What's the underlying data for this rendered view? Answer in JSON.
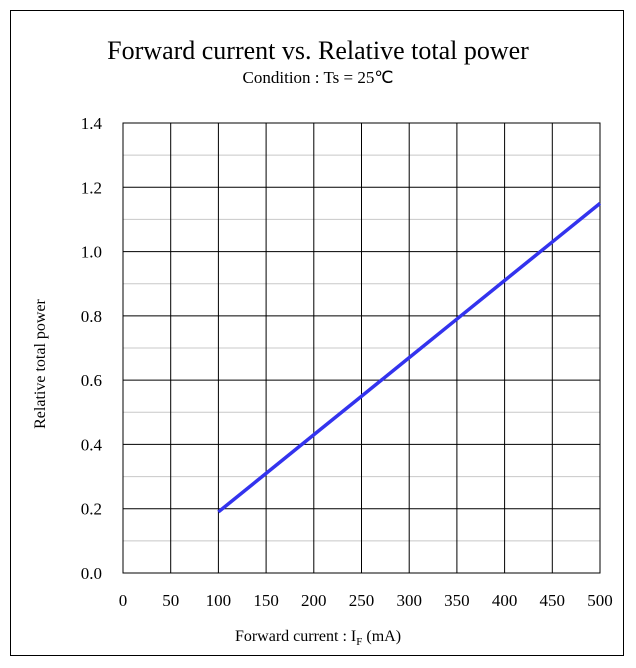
{
  "chart_data": {
    "type": "line",
    "title": "Forward current vs. Relative total power",
    "subtitle": "Condition : Ts = 25℃",
    "xlabel_main": "Forward current : I",
    "xlabel_sub": "F",
    "xlabel_unit": " (mA)",
    "ylabel": "Relative total power",
    "xlim": [
      0,
      500
    ],
    "ylim": [
      0.0,
      1.4
    ],
    "x_ticks": [
      0,
      50,
      100,
      150,
      200,
      250,
      300,
      350,
      400,
      450,
      500
    ],
    "x_tick_labels": [
      "0",
      "50",
      "100",
      "150",
      "200",
      "250",
      "300",
      "350",
      "400",
      "450",
      "500"
    ],
    "y_ticks": [
      0.0,
      0.2,
      0.4,
      0.6,
      0.8,
      1.0,
      1.2,
      1.4
    ],
    "y_tick_labels": [
      "0.0",
      "0.2",
      "0.4",
      "0.6",
      "0.8",
      "1.0",
      "1.2",
      "1.4"
    ],
    "y_minor_step": 0.1,
    "grid": true,
    "series": [
      {
        "color": "#3333ee",
        "x": [
          100,
          150,
          200,
          250,
          300,
          350,
          400,
          450,
          500
        ],
        "y": [
          0.19,
          0.31,
          0.43,
          0.55,
          0.67,
          0.79,
          0.91,
          1.03,
          1.15
        ]
      }
    ]
  }
}
